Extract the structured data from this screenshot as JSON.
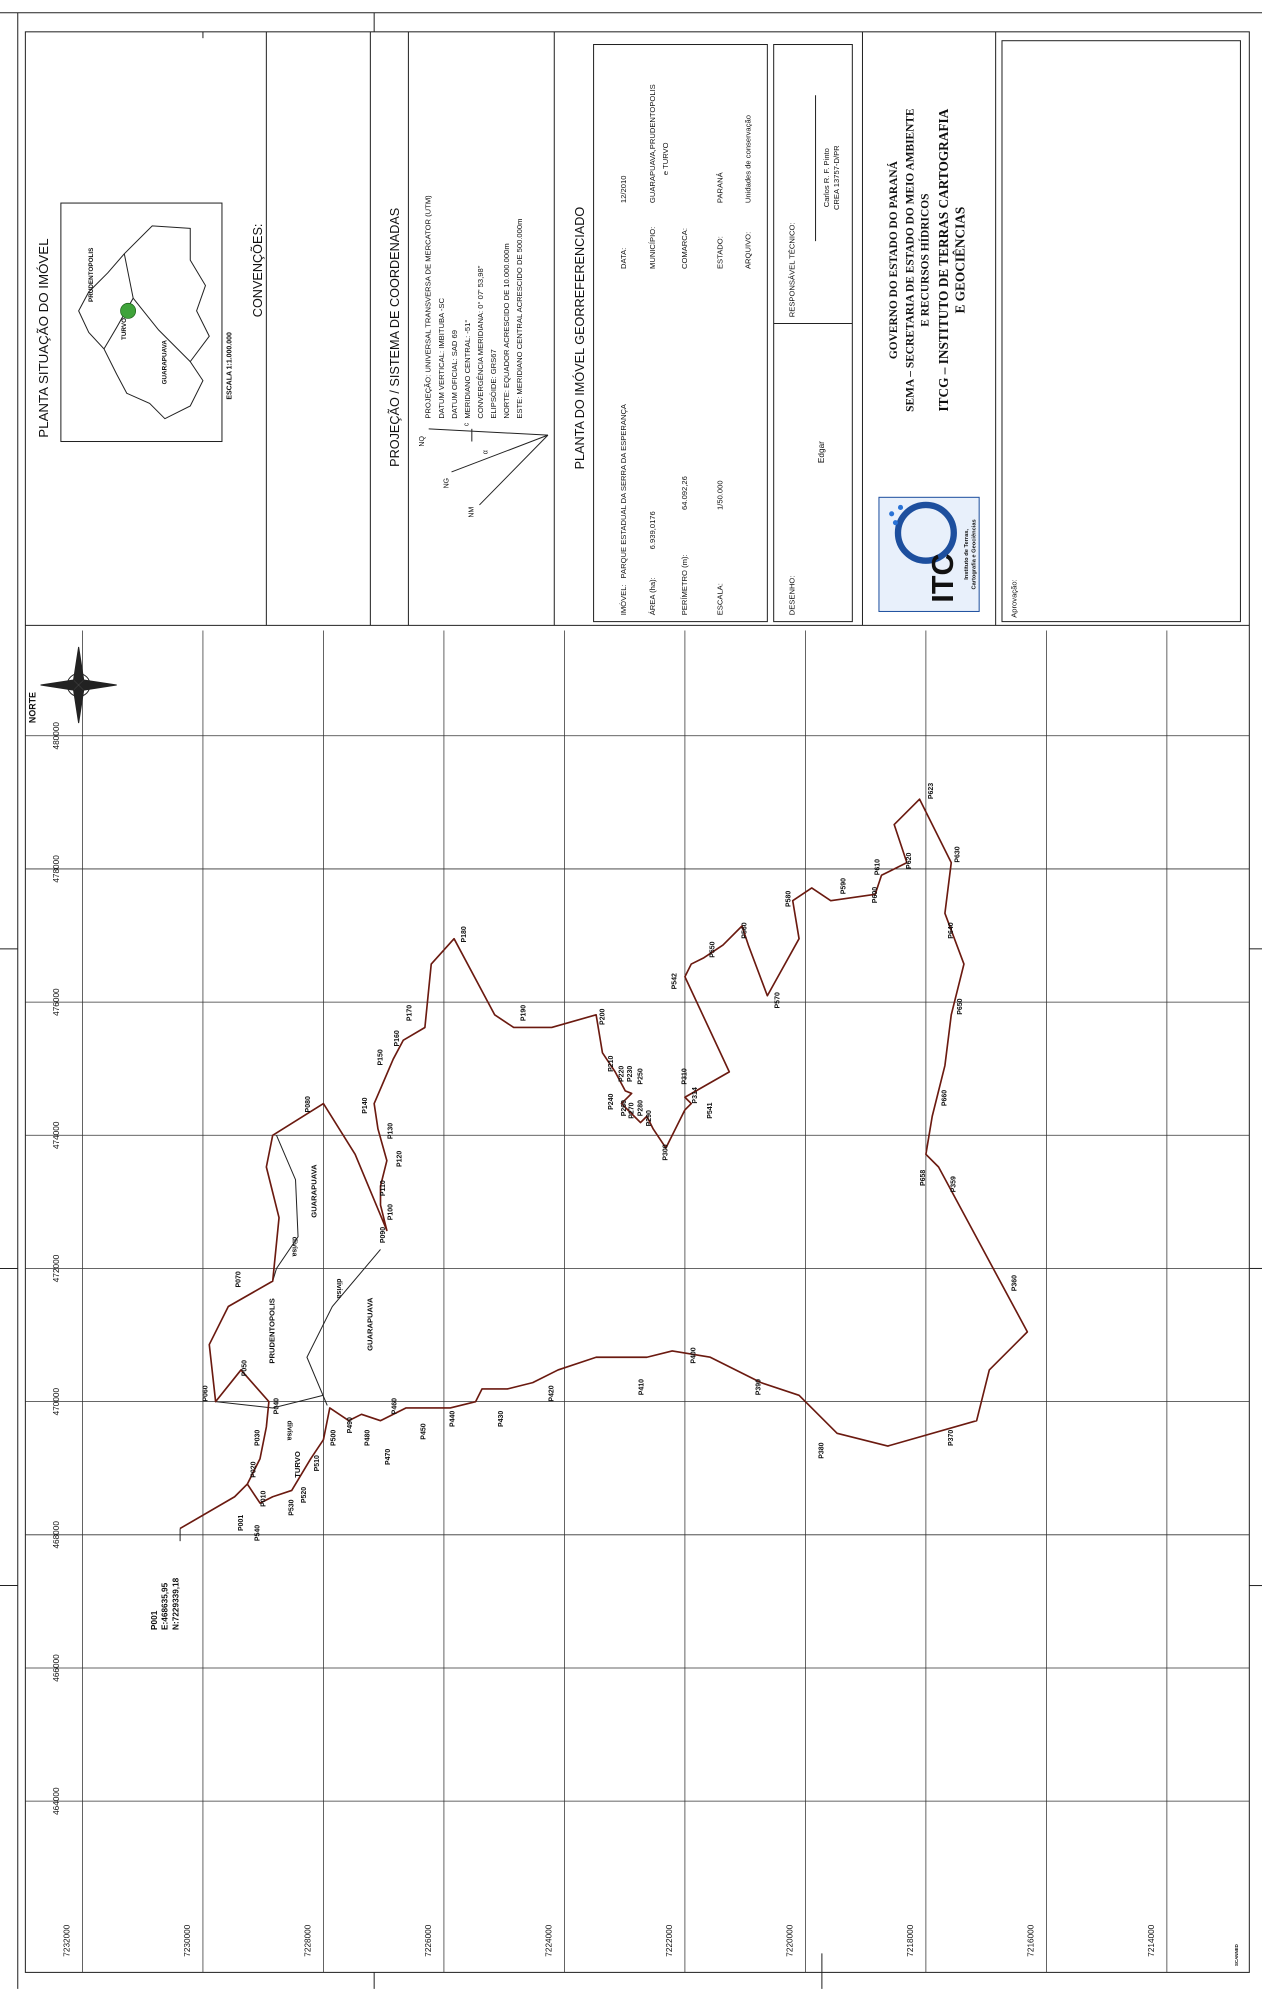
{
  "situation": {
    "title": "PLANTA SITUAÇÃO DO IMÓVEL",
    "inset_labels": [
      "PRUDENTOPOLIS",
      "TURVO",
      "GUARAPUAVA"
    ],
    "scale": "ESCALA 1:1.000.000",
    "conventions": "CONVENÇÕES:"
  },
  "projection": {
    "title": "PROJEÇÃO / SISTEMA DE COORDENADAS",
    "north_labels": [
      "NQ",
      "NG",
      "NM",
      "c",
      "α"
    ],
    "lines": [
      "PROJEÇÃO: UNIVERSAL TRANSVERSA DE MERCATOR (UTM)",
      "DATUM VERTICAL: IMBITUBA -SC",
      "DATUM OFICIAL: SAD 69",
      "MERIDIANO CENTRAL: -51°",
      "CONVERGÊNCIA MERIDIANA: 0° 07' 53,98\"",
      "ELIPSÓIDE: GRS67",
      "NORTE: EQUADOR ACRESCIDO DE 10.000.000m",
      "ESTE: MERIDIANO CENTRAL ACRESCIDO DE 500.000m"
    ]
  },
  "property": {
    "title": "PLANTA DO IMÓVEL GEORREFERENCIADO",
    "fields": [
      {
        "label": "IMÓVEL:",
        "value": "PARQUE ESTADUAL DA SERRA DA ESPERANÇA"
      },
      {
        "label": "ÁREA (ha):",
        "value": "6.939,0176"
      },
      {
        "label": "PERÍMETRO (m):",
        "value": "64.092,26"
      },
      {
        "label": "ESCALA:",
        "value": "1/50.000"
      },
      {
        "label": "DATA:",
        "value": "12/2010"
      },
      {
        "label": "MUNICÍPIO:",
        "lines": [
          "GUARAPUAVA,PRUDENTOPOLIS",
          "e TURVO"
        ]
      },
      {
        "label": "COMARCA:"
      },
      {
        "label": "ESTADO:",
        "value": "PARANÁ"
      },
      {
        "label": "ARQUIVO:",
        "value": "Unidades de conservação"
      }
    ]
  },
  "responsibles": {
    "drawing_label": "DESENHO:",
    "drawing": "Edgar",
    "technical_label": "RESPONSÁVEL TÉCNICO:",
    "technical": [
      "Carlos R. F. Pinto",
      "CREA 13757-D/PR"
    ]
  },
  "agency": {
    "lines": [
      "GOVERNO DO ESTADO DO PARANÁ",
      "SEMA – SECRETARIA DE ESTADO DO MEIO AMBIENTE",
      "E RECURSOS HÍDRICOS",
      "ITCG – INSTITUTO DE TERRAS CARTOGRAFIA",
      "E GEOCIÊNCIAS"
    ],
    "logo": "ITC",
    "logo_caption": [
      "Instituto de Terras,",
      "Cartografia e Geociências"
    ]
  },
  "approval": "Aprovação:",
  "map": {
    "north": "NORTE",
    "eastings": [
      "480000",
      "478000",
      "476000",
      "474000",
      "472000",
      "470000",
      "468000",
      "466000",
      "464000"
    ],
    "northings": [
      "7232000",
      "7230000",
      "7228000",
      "7226000",
      "7224000",
      "7222000",
      "7220000",
      "7218000",
      "7216000",
      "7214000"
    ],
    "origin": [
      "P001",
      "E:468635,95",
      "N:7229339,18"
    ],
    "points": [
      "P001",
      "P540",
      "P010",
      "P020",
      "P030",
      "P040",
      "P050",
      "P060",
      "P070",
      "P080",
      "P090",
      "P100",
      "P110",
      "P120",
      "P130",
      "P140",
      "P150",
      "P160",
      "P170",
      "P180",
      "P190",
      "P200",
      "P210",
      "P240",
      "P220",
      "P230",
      "P250",
      "P260",
      "P270",
      "P280",
      "P290",
      "P300",
      "P310",
      "P314",
      "P541",
      "P542",
      "P550",
      "P560",
      "P570",
      "P580",
      "P590",
      "P600",
      "P610",
      "P620",
      "P623",
      "P630",
      "P640",
      "P650",
      "P660",
      "P658",
      "P359",
      "P360",
      "P370",
      "P380",
      "P390",
      "P400",
      "P410",
      "P420",
      "P430",
      "P440",
      "P450",
      "P460",
      "P470",
      "P480",
      "P490",
      "P500",
      "P510",
      "P520",
      "P530"
    ],
    "areas": [
      "PRUDENTOPOLIS",
      "TURVO",
      "GUARAPUAVA",
      "GUARAPUAVA"
    ],
    "divisions": [
      "divisa",
      "divisa",
      "divisa"
    ],
    "stamp": "SCANNED"
  }
}
